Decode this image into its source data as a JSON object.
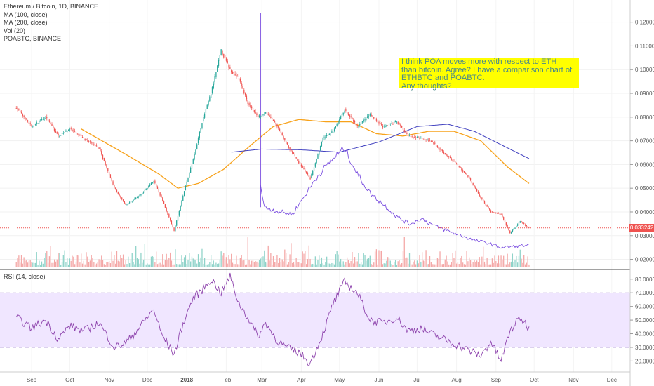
{
  "legend": {
    "title": "Ethereum / Bitcoin, 1D, BINANCE",
    "lines": [
      "MA (100, close)",
      "MA (200, close)",
      "Vol (20)",
      "POABTC, BINANCE"
    ]
  },
  "annotation": {
    "lines": [
      "I think POA moves more with respect to ETH",
      "than bitcoin. Agree? I have a comparison chart of",
      "ETHBTC and POABTC.",
      "Any thoughts?"
    ]
  },
  "rsi_legend": "RSI (14, close)",
  "current_price": "0.033242",
  "colors": {
    "up": "#26a69a",
    "down": "#ef5350",
    "ma100": "#f7a21b",
    "ma200": "#3f3fbf",
    "poa": "#7b4fe0",
    "rsi": "#8e44ad",
    "rsi_band": "#f0e6ff",
    "annotation_bg": "#ffff00",
    "annotation_text": "#4a8a8a"
  },
  "chart_data": {
    "type": "line",
    "title": "Ethereum / Bitcoin, 1D, BINANCE",
    "x_tick_labels": [
      "Sep",
      "Oct",
      "Nov",
      "Dec",
      "2018",
      "Feb",
      "Mar",
      "Apr",
      "May",
      "Jun",
      "Jul",
      "Aug",
      "Sep",
      "Oct",
      "Nov",
      "Dec"
    ],
    "y_tick_labels": [
      "0.120000",
      "0.110000",
      "0.100000",
      "0.090000",
      "0.080000",
      "0.070000",
      "0.060000",
      "0.050000",
      "0.040000",
      "0.030000",
      "0.020000"
    ],
    "ylim": [
      0.0175,
      0.127
    ],
    "rsi_tick_labels": [
      "80.0000",
      "70.0000",
      "60.0000",
      "50.0000",
      "40.0000",
      "30.0000",
      "20.0000"
    ],
    "rsi_ylim": [
      13,
      84
    ],
    "rsi_bands": [
      30,
      70
    ],
    "series": [
      {
        "name": "Ethereum / Bitcoin",
        "x": [
          "2017-08-20",
          "2017-09-01",
          "2017-09-12",
          "2017-09-22",
          "2017-10-01",
          "2017-10-12",
          "2017-10-24",
          "2017-11-05",
          "2017-11-14",
          "2017-11-25",
          "2017-12-06",
          "2017-12-12",
          "2017-12-22",
          "2017-12-30",
          "2018-01-06",
          "2018-01-13",
          "2018-01-20",
          "2018-01-28",
          "2018-02-04",
          "2018-02-11",
          "2018-02-18",
          "2018-02-26",
          "2018-03-04",
          "2018-03-12",
          "2018-03-20",
          "2018-03-31",
          "2018-04-08",
          "2018-04-18",
          "2018-04-26",
          "2018-05-05",
          "2018-05-15",
          "2018-05-25",
          "2018-06-04",
          "2018-06-15",
          "2018-06-24",
          "2018-07-04",
          "2018-07-12",
          "2018-07-22",
          "2018-08-01",
          "2018-08-10",
          "2018-08-20",
          "2018-08-28",
          "2018-09-05",
          "2018-09-12",
          "2018-09-20",
          "2018-09-27"
        ],
        "values": [
          0.084,
          0.076,
          0.08,
          0.072,
          0.075,
          0.071,
          0.067,
          0.05,
          0.043,
          0.047,
          0.053,
          0.046,
          0.032,
          0.049,
          0.062,
          0.078,
          0.09,
          0.108,
          0.1,
          0.096,
          0.086,
          0.08,
          0.082,
          0.077,
          0.069,
          0.06,
          0.054,
          0.071,
          0.074,
          0.083,
          0.076,
          0.081,
          0.076,
          0.078,
          0.072,
          0.071,
          0.07,
          0.065,
          0.06,
          0.055,
          0.046,
          0.04,
          0.039,
          0.031,
          0.036,
          0.0332
        ]
      },
      {
        "name": "MA (100, close)",
        "x": [
          "2017-10-10",
          "2017-11-15",
          "2017-12-10",
          "2017-12-25",
          "2018-01-10",
          "2018-01-30",
          "2018-02-20",
          "2018-03-10",
          "2018-03-30",
          "2018-04-20",
          "2018-05-10",
          "2018-05-30",
          "2018-06-20",
          "2018-07-10",
          "2018-07-30",
          "2018-08-20",
          "2018-09-10",
          "2018-09-27"
        ],
        "values": [
          0.075,
          0.064,
          0.056,
          0.05,
          0.052,
          0.058,
          0.068,
          0.076,
          0.079,
          0.078,
          0.078,
          0.073,
          0.072,
          0.074,
          0.074,
          0.07,
          0.059,
          0.052
        ]
      },
      {
        "name": "MA (200, close)",
        "x": [
          "2018-02-05",
          "2018-03-01",
          "2018-04-01",
          "2018-05-01",
          "2018-06-01",
          "2018-07-01",
          "2018-07-25",
          "2018-08-15",
          "2018-09-10",
          "2018-09-27"
        ],
        "values": [
          0.0652,
          0.0665,
          0.0662,
          0.0652,
          0.0695,
          0.076,
          0.077,
          0.074,
          0.067,
          0.0625
        ]
      },
      {
        "name": "POABTC, BINANCE",
        "x": [
          "2018-02-28",
          "2018-03-03",
          "2018-03-15",
          "2018-03-25",
          "2018-04-05",
          "2018-04-15",
          "2018-04-25",
          "2018-05-05",
          "2018-05-15",
          "2018-05-25",
          "2018-06-05",
          "2018-06-15",
          "2018-06-25",
          "2018-07-05",
          "2018-07-15",
          "2018-07-25",
          "2018-08-05",
          "2018-08-15",
          "2018-08-25",
          "2018-09-05",
          "2018-09-15",
          "2018-09-27"
        ],
        "values": [
          0.051,
          0.042,
          0.04,
          0.039,
          0.048,
          0.056,
          0.062,
          0.067,
          0.056,
          0.048,
          0.043,
          0.038,
          0.035,
          0.037,
          0.034,
          0.032,
          0.03,
          0.028,
          0.027,
          0.025,
          0.0255,
          0.026
        ]
      },
      {
        "name": "RSI (14, close)",
        "x": [
          "2017-08-20",
          "2017-09-01",
          "2017-09-12",
          "2017-09-22",
          "2017-10-01",
          "2017-10-12",
          "2017-10-24",
          "2017-11-05",
          "2017-11-14",
          "2017-11-25",
          "2017-12-06",
          "2017-12-12",
          "2017-12-22",
          "2017-12-30",
          "2018-01-06",
          "2018-01-13",
          "2018-01-20",
          "2018-01-28",
          "2018-02-04",
          "2018-02-11",
          "2018-02-18",
          "2018-02-26",
          "2018-03-04",
          "2018-03-12",
          "2018-03-20",
          "2018-03-31",
          "2018-04-08",
          "2018-04-18",
          "2018-04-26",
          "2018-05-05",
          "2018-05-15",
          "2018-05-25",
          "2018-06-04",
          "2018-06-15",
          "2018-06-24",
          "2018-07-04",
          "2018-07-12",
          "2018-07-22",
          "2018-08-01",
          "2018-08-10",
          "2018-08-20",
          "2018-08-28",
          "2018-09-05",
          "2018-09-12",
          "2018-09-20",
          "2018-09-27"
        ],
        "values": [
          52,
          44,
          50,
          36,
          46,
          42,
          48,
          30,
          33,
          45,
          58,
          40,
          25,
          50,
          66,
          72,
          80,
          70,
          82,
          62,
          52,
          38,
          48,
          36,
          30,
          26,
          18,
          40,
          62,
          78,
          70,
          50,
          48,
          52,
          42,
          44,
          40,
          36,
          32,
          28,
          24,
          34,
          20,
          42,
          52,
          44
        ]
      }
    ]
  }
}
